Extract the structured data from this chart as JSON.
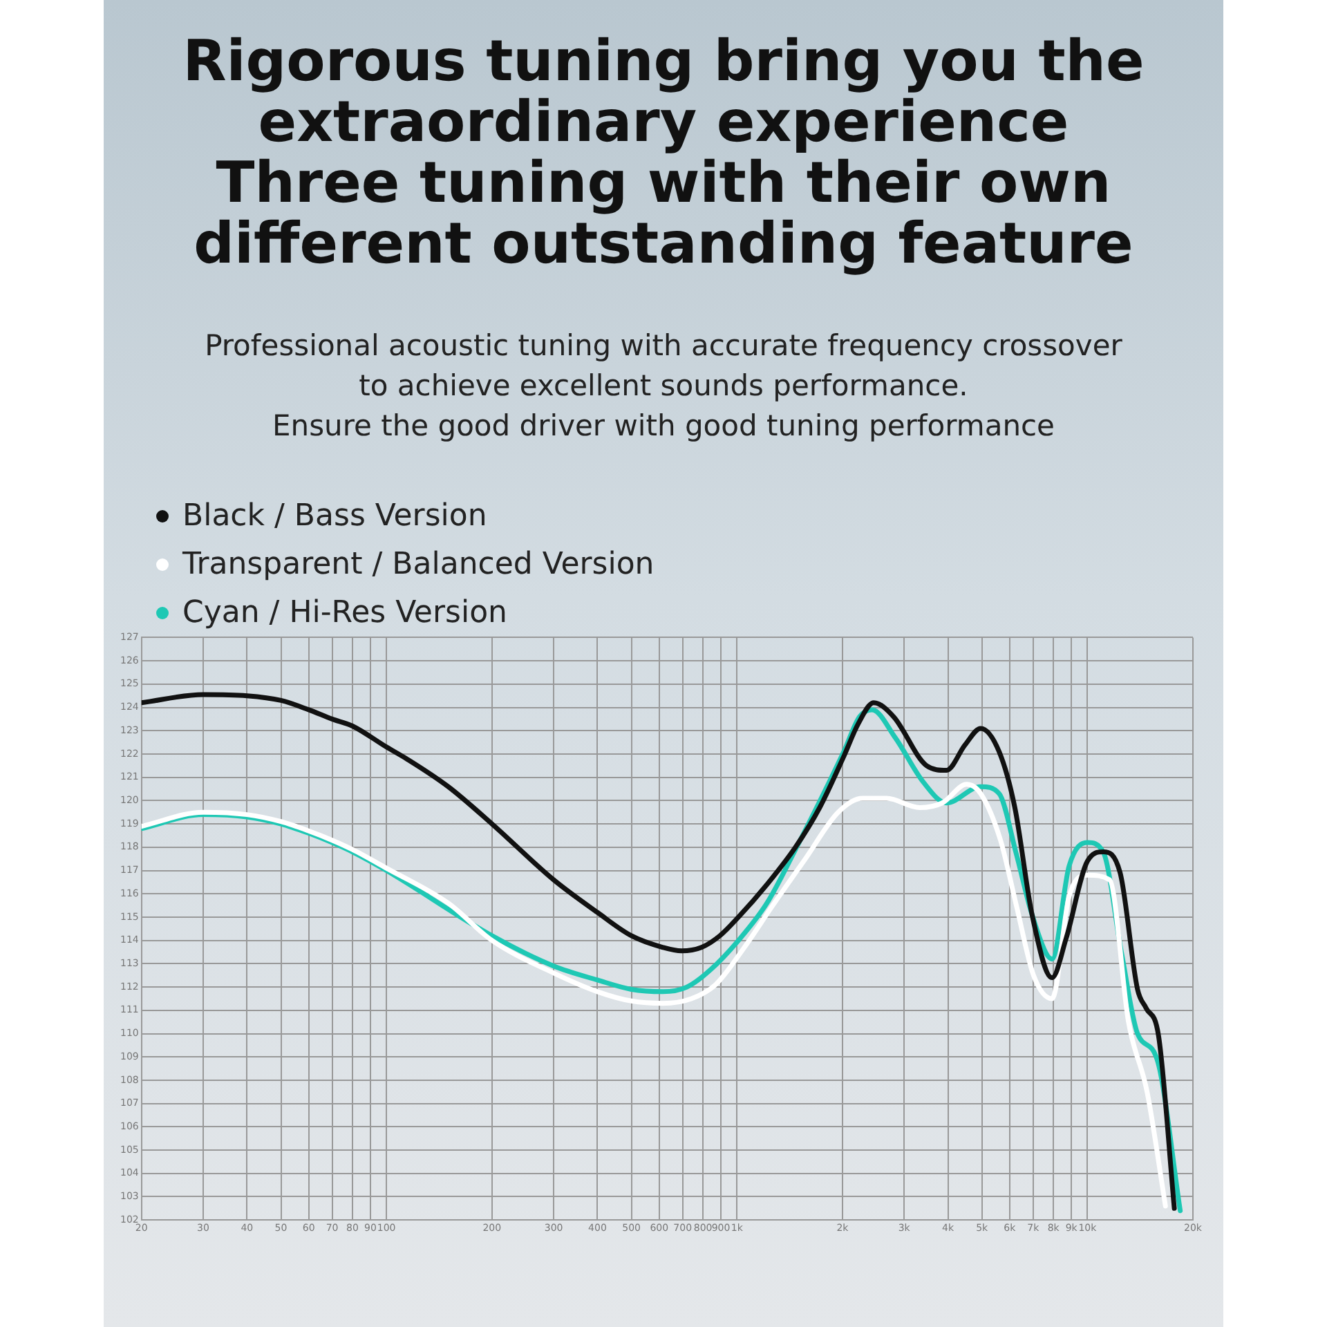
{
  "chart_data": {
    "type": "line",
    "title": "Rigorous tuning bring you the\nextraordinary experience\nThree tuning with their own\ndifferent outstanding feature",
    "subtitle": "Professional acoustic tuning with accurate frequency crossover\nto achieve excellent sounds performance.\nEnsure the good driver with good tuning performance",
    "log": "x",
    "grid": true,
    "legend": "top left",
    "marker": "none",
    "line_style": "solid",
    "xlim": [
      20,
      20000
    ],
    "xticks": [
      20,
      30,
      40,
      50,
      60,
      70,
      80,
      90,
      100,
      200,
      300,
      400,
      500,
      600,
      700,
      800,
      900,
      {
        "value": 1000,
        "label": "1k"
      },
      {
        "value": 2000,
        "label": "2k"
      },
      {
        "value": 3000,
        "label": "3k"
      },
      {
        "value": 4000,
        "label": "4k"
      },
      {
        "value": 5000,
        "label": "5k"
      },
      {
        "value": 6000,
        "label": "6k"
      },
      {
        "value": 7000,
        "label": "7k"
      },
      {
        "value": 8000,
        "label": "8k"
      },
      {
        "value": 9000,
        "label": "9k"
      },
      {
        "value": 10000,
        "label": "10k"
      },
      {
        "value": 20000,
        "label": "20k"
      }
    ],
    "ylim": [
      102,
      127
    ],
    "yticks": [
      102,
      103,
      104,
      105,
      106,
      107,
      108,
      109,
      110,
      111,
      112,
      113,
      114,
      115,
      116,
      117,
      118,
      119,
      120,
      121,
      122,
      123,
      124,
      125,
      126,
      127
    ],
    "series": [
      {
        "name": "Black / Bass Version",
        "color": "#111111",
        "x": [
          20,
          30,
          40,
          50,
          60,
          70,
          80,
          100,
          114,
          150,
          200,
          300,
          400,
          500,
          615,
          695,
          792,
          894,
          1010,
          1218,
          1469,
          1722,
          2018,
          2219,
          2456,
          2800,
          3477,
          3963,
          4479,
          4960,
          5600,
          6208,
          6952,
          7925,
          8700,
          10000,
          11090,
          12400,
          13900,
          14700,
          15960,
          17700
        ],
        "values": [
          124.2,
          124.55,
          124.5,
          124.3,
          123.9,
          123.5,
          123.2,
          122.3,
          121.8,
          120.6,
          119.0,
          116.6,
          115.2,
          114.2,
          113.7,
          113.55,
          113.7,
          114.2,
          115.0,
          116.4,
          118.0,
          119.7,
          121.9,
          123.3,
          124.2,
          123.6,
          121.5,
          121.3,
          122.4,
          123.1,
          122.1,
          119.7,
          115.1,
          112.4,
          114.1,
          117.4,
          117.8,
          116.9,
          111.9,
          111.1,
          109.9,
          102.5
        ]
      },
      {
        "name": "Transparent / Balanced Version",
        "color": "#ffffff",
        "x": [
          20,
          30,
          40,
          50,
          60,
          70,
          80,
          100,
          150,
          200,
          300,
          400,
          500,
          615,
          741,
          869,
          1050,
          1265,
          1567,
          1945,
          2281,
          2674,
          3319,
          3856,
          4520,
          4960,
          5650,
          6270,
          7020,
          7925,
          8870,
          10000,
          11570,
          13100,
          14800,
          16700
        ],
        "values": [
          118.9,
          119.5,
          119.4,
          119.1,
          118.7,
          118.3,
          117.9,
          117.1,
          115.6,
          114.0,
          112.6,
          111.8,
          111.4,
          111.3,
          111.5,
          112.1,
          113.7,
          115.5,
          117.5,
          119.5,
          120.1,
          120.1,
          119.7,
          119.9,
          120.7,
          120.3,
          118.3,
          115.5,
          112.5,
          111.5,
          115.9,
          116.8,
          116.6,
          110.5,
          107.5,
          102.6
        ]
      },
      {
        "name": "Cyan / Hi-Res Version",
        "color": "#1ec8b4",
        "x": [
          20,
          30,
          40,
          50,
          60,
          70,
          80,
          100,
          200,
          300,
          400,
          500,
          615,
          720,
          835,
          1010,
          1218,
          1469,
          2018,
          2237,
          2430,
          2830,
          3400,
          3963,
          4960,
          5600,
          6270,
          6952,
          7925,
          8870,
          10000,
          11090,
          12500,
          13900,
          15800,
          18400
        ],
        "values": [
          118.8,
          119.4,
          119.3,
          119.0,
          118.6,
          118.2,
          117.8,
          117.0,
          114.2,
          112.9,
          112.3,
          111.9,
          111.8,
          112.0,
          112.7,
          114.0,
          115.6,
          117.9,
          122.1,
          123.6,
          123.9,
          122.7,
          120.8,
          119.9,
          120.6,
          120.3,
          117.7,
          115.1,
          113.2,
          117.2,
          118.2,
          117.8,
          113.5,
          110.0,
          108.9,
          102.4
        ]
      }
    ]
  }
}
